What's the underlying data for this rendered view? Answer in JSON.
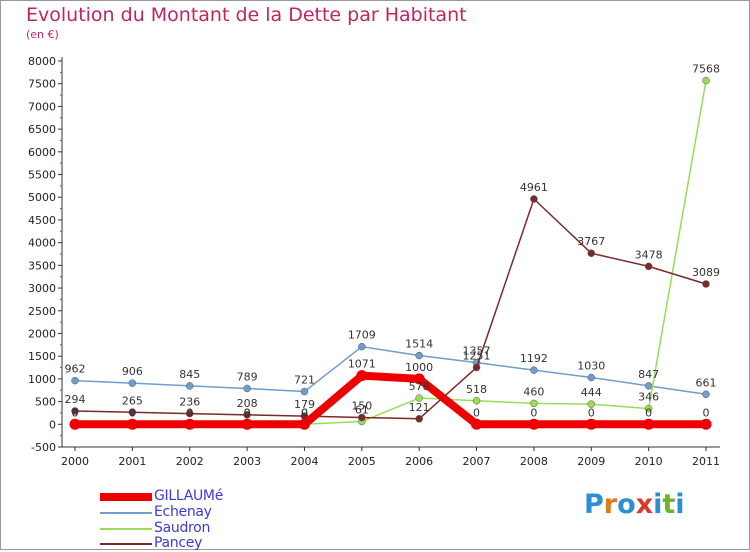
{
  "title": "Evolution du Montant de la Dette par Habitant",
  "subtitle": "(en €)",
  "chart_data": {
    "type": "line",
    "x": [
      "2000",
      "2001",
      "2002",
      "2003",
      "2004",
      "2005",
      "2006",
      "2007",
      "2008",
      "2009",
      "2010",
      "2011"
    ],
    "yticks": [
      "8000",
      "7500",
      "7000",
      "6500",
      "6000",
      "5500",
      "5000",
      "4500",
      "4000",
      "3500",
      "3000",
      "2500",
      "2000",
      "1500",
      "1000",
      "500",
      "0",
      "-500"
    ],
    "ylim": [
      -500,
      8000
    ],
    "grid": false,
    "series": [
      {
        "name": "GILLAUMé",
        "color": "#ee0000",
        "values": [
          0,
          0,
          0,
          0,
          0,
          1071,
          1000,
          0,
          0,
          0,
          0,
          0
        ],
        "labels": [
          "0",
          "0",
          "0",
          "0",
          "0",
          "1071",
          "1000",
          "0",
          "0",
          "0",
          "0",
          "0"
        ]
      },
      {
        "name": "Echenay",
        "color": "#6f9ecc",
        "values": [
          962,
          906,
          845,
          789,
          721,
          1709,
          1514,
          1357,
          1192,
          1030,
          847,
          661
        ],
        "labels": [
          "962",
          "906",
          "845",
          "789",
          "721",
          "1709",
          "1514",
          "1357",
          "1192",
          "1030",
          "847",
          "661"
        ]
      },
      {
        "name": "Saudron",
        "color": "#99dd55",
        "values": [
          0,
          0,
          0,
          0,
          0,
          61,
          578,
          518,
          460,
          444,
          346,
          7568
        ],
        "labels": [
          "0",
          "0",
          "0",
          "0",
          "0",
          "61",
          "578",
          "518",
          "460",
          "444",
          "346",
          "7568"
        ]
      },
      {
        "name": "Pancey",
        "color": "#7a2a2a",
        "values": [
          294,
          265,
          236,
          208,
          179,
          150,
          121,
          1251,
          4961,
          3767,
          3478,
          3089
        ],
        "labels": [
          "294",
          "265",
          "236",
          "208",
          "179",
          "150",
          "121",
          "1251",
          "4961",
          "3767",
          "3478",
          "3089"
        ]
      }
    ]
  },
  "legend": [
    {
      "label": "GILLAUMé",
      "color": "#ee0000"
    },
    {
      "label": "Echenay",
      "color": "#6f9ecc"
    },
    {
      "label": "Saudron",
      "color": "#99dd55"
    },
    {
      "label": "Pancey",
      "color": "#7a2a2a"
    }
  ],
  "logo": {
    "text": "Proxiti",
    "colors": [
      "#2b8fd6",
      "#e07a1a",
      "#2b8fd6",
      "#d83a2a",
      "#2b8fd6",
      "#6ab42d",
      "#2b8fd6"
    ]
  }
}
